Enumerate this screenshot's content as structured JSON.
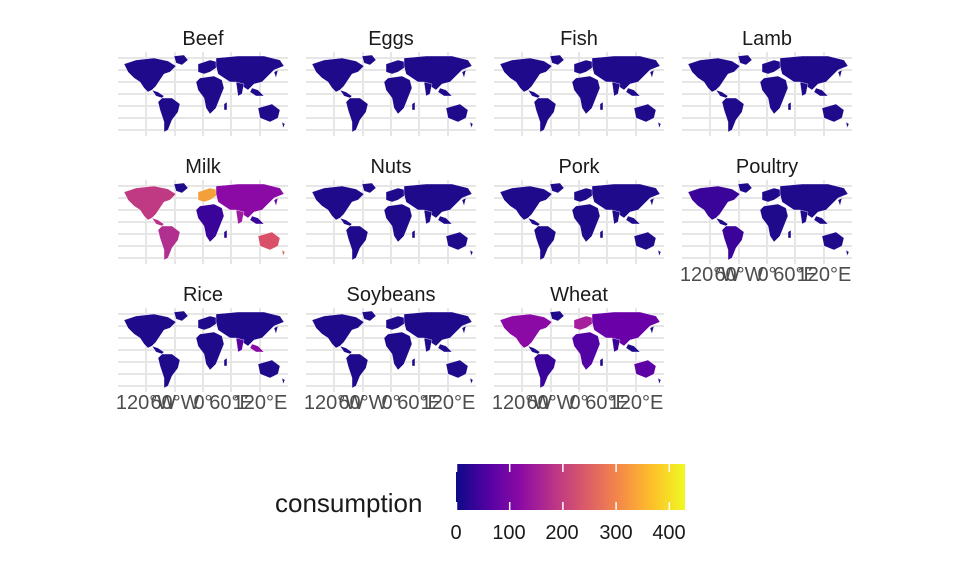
{
  "facets": [
    {
      "title": "Beef",
      "milk_like": false,
      "wheat_like": false
    },
    {
      "title": "Eggs"
    },
    {
      "title": "Fish"
    },
    {
      "title": "Lamb"
    },
    {
      "title": "Milk"
    },
    {
      "title": "Nuts"
    },
    {
      "title": "Pork"
    },
    {
      "title": "Poultry"
    },
    {
      "title": "Rice"
    },
    {
      "title": "Soybeans"
    },
    {
      "title": "Wheat"
    }
  ],
  "axis_tick_labels": [
    "120°W",
    "60°W",
    "0°",
    "60°E",
    "120°E"
  ],
  "legend": {
    "title": "consumption",
    "ticks": [
      "0",
      "100",
      "200",
      "300",
      "400"
    ],
    "range": [
      0,
      430
    ],
    "palette": [
      "#0d0887",
      "#5302a3",
      "#8b0aa5",
      "#b83289",
      "#db5c68",
      "#f48849",
      "#febd2a",
      "#f0f921"
    ]
  },
  "colors": {
    "base_fill": "#1f0a8c",
    "grid": "#e6e6e6"
  }
}
